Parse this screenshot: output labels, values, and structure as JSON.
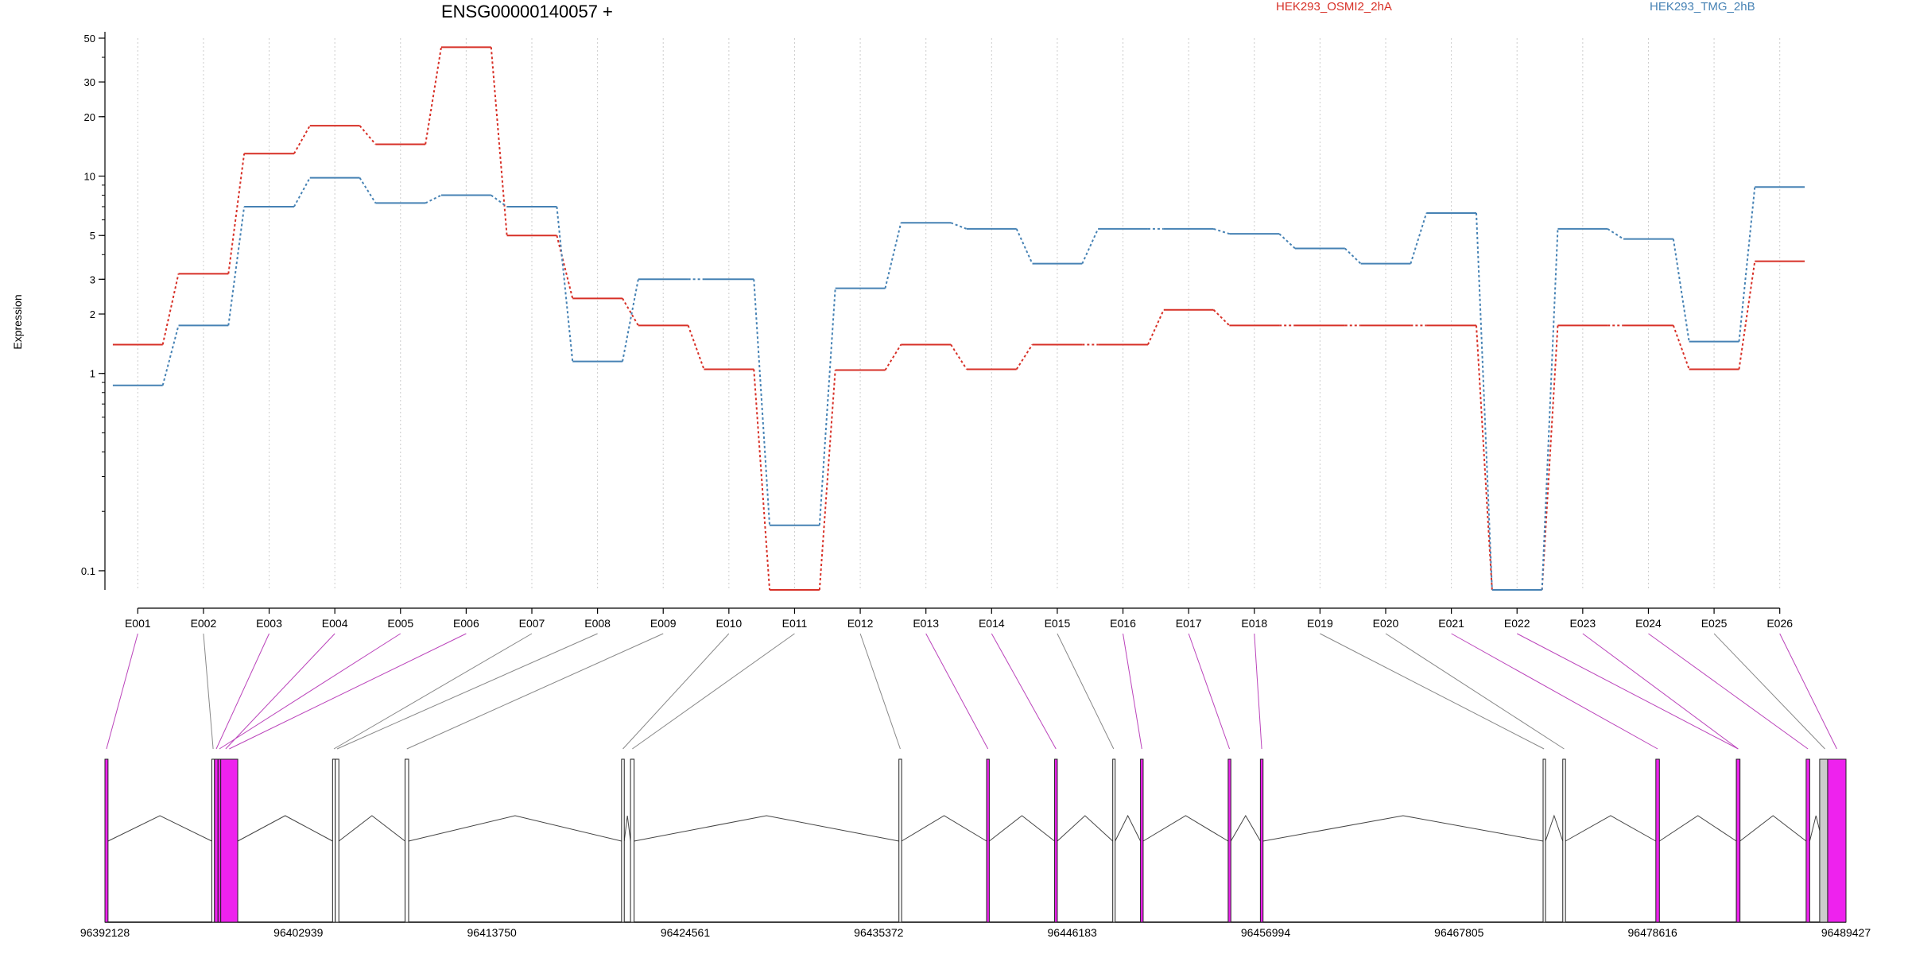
{
  "chart_data": {
    "type": "line",
    "title": "ENSG00000140057 +",
    "xlabel": "",
    "ylabel": "Expression",
    "y_scale": "log",
    "ylim": [
      0.08,
      50
    ],
    "y_ticks": [
      0.1,
      1,
      2,
      3,
      5,
      10,
      20,
      30,
      50
    ],
    "y_tick_labels": [
      "0.1",
      "1",
      "2",
      "3",
      "5",
      "10",
      "20",
      "30",
      "50"
    ],
    "categories": [
      "E001",
      "E002",
      "E003",
      "E004",
      "E005",
      "E006",
      "E007",
      "E008",
      "E009",
      "E010",
      "E011",
      "E012",
      "E013",
      "E014",
      "E015",
      "E016",
      "E017",
      "E018",
      "E019",
      "E020",
      "E021",
      "E022",
      "E023",
      "E024",
      "E025",
      "E026"
    ],
    "series": [
      {
        "name": "HEK293_OSMI2_2hA",
        "color": "#d73027",
        "values": [
          1.4,
          3.2,
          13,
          18,
          14.5,
          45,
          5,
          2.4,
          1.75,
          1.05,
          0.08,
          1.04,
          1.4,
          1.05,
          1.4,
          1.4,
          2.1,
          1.75,
          1.75,
          1.75,
          1.75,
          0.08,
          1.75,
          1.75,
          1.05,
          3.7
        ]
      },
      {
        "name": "HEK293_TMG_2hB",
        "color": "#4682b4",
        "values": [
          0.87,
          1.75,
          7,
          9.8,
          7.3,
          8,
          7,
          1.15,
          3,
          3,
          0.17,
          2.7,
          5.8,
          5.4,
          3.6,
          5.4,
          5.4,
          5.1,
          4.3,
          3.6,
          6.5,
          0.08,
          5.4,
          4.8,
          1.45,
          8.8
        ]
      }
    ],
    "genomic_ticks": [
      "96392128",
      "96402939",
      "96413750",
      "96424561",
      "96435372",
      "96446183",
      "96456994",
      "96467805",
      "96478616",
      "96489427"
    ],
    "genome_range": [
      96392128,
      96489427
    ],
    "exons": [
      {
        "id": "E001",
        "start": 96392128,
        "end": 96392300,
        "highlight": true
      },
      {
        "id": "E002",
        "start": 96398100,
        "end": 96398250,
        "highlight": false
      },
      {
        "id": "E003",
        "start": 96398250,
        "end": 96398450,
        "highlight": true
      },
      {
        "id": "E004",
        "start": 96398450,
        "end": 96399300,
        "highlight": true
      },
      {
        "id": "E005",
        "start": 96398450,
        "end": 96398600,
        "highlight": true
      },
      {
        "id": "E006",
        "start": 96398600,
        "end": 96399550,
        "highlight": true
      },
      {
        "id": "E007",
        "start": 96404850,
        "end": 96405000,
        "highlight": false
      },
      {
        "id": "E008",
        "start": 96405000,
        "end": 96405200,
        "highlight": false
      },
      {
        "id": "E009",
        "start": 96408900,
        "end": 96409100,
        "highlight": false
      },
      {
        "id": "E010",
        "start": 96421000,
        "end": 96421150,
        "highlight": false
      },
      {
        "id": "E011",
        "start": 96421500,
        "end": 96421700,
        "highlight": false
      },
      {
        "id": "E012",
        "start": 96436500,
        "end": 96436650,
        "highlight": false
      },
      {
        "id": "E013",
        "start": 96441400,
        "end": 96441550,
        "highlight": true
      },
      {
        "id": "E014",
        "start": 96445200,
        "end": 96445350,
        "highlight": true
      },
      {
        "id": "E015",
        "start": 96448450,
        "end": 96448550,
        "highlight": false
      },
      {
        "id": "E016",
        "start": 96450000,
        "end": 96450150,
        "highlight": true
      },
      {
        "id": "E017",
        "start": 96454900,
        "end": 96455050,
        "highlight": true
      },
      {
        "id": "E018",
        "start": 96456700,
        "end": 96456850,
        "highlight": true
      },
      {
        "id": "E019",
        "start": 96472500,
        "end": 96472600,
        "highlight": false
      },
      {
        "id": "E020",
        "start": 96473600,
        "end": 96473750,
        "highlight": false
      },
      {
        "id": "E021",
        "start": 96478800,
        "end": 96479000,
        "highlight": true
      },
      {
        "id": "E022",
        "start": 96483300,
        "end": 96483500,
        "highlight": true
      },
      {
        "id": "E023",
        "start": 96483300,
        "end": 96483500,
        "highlight": true
      },
      {
        "id": "E024",
        "start": 96487200,
        "end": 96487400,
        "highlight": true
      },
      {
        "id": "E025",
        "start": 96488100,
        "end": 96488400,
        "highlight": false
      },
      {
        "id": "E026",
        "start": 96488400,
        "end": 96489427,
        "highlight": true
      }
    ],
    "colors": {
      "highlight_exon": "#ee22ee",
      "plain_exon": "#ffffff",
      "gray_exon": "#cccccc",
      "link_gray": "#888888",
      "link_magenta": "#bb44bb",
      "grid": "#cccccc"
    }
  }
}
